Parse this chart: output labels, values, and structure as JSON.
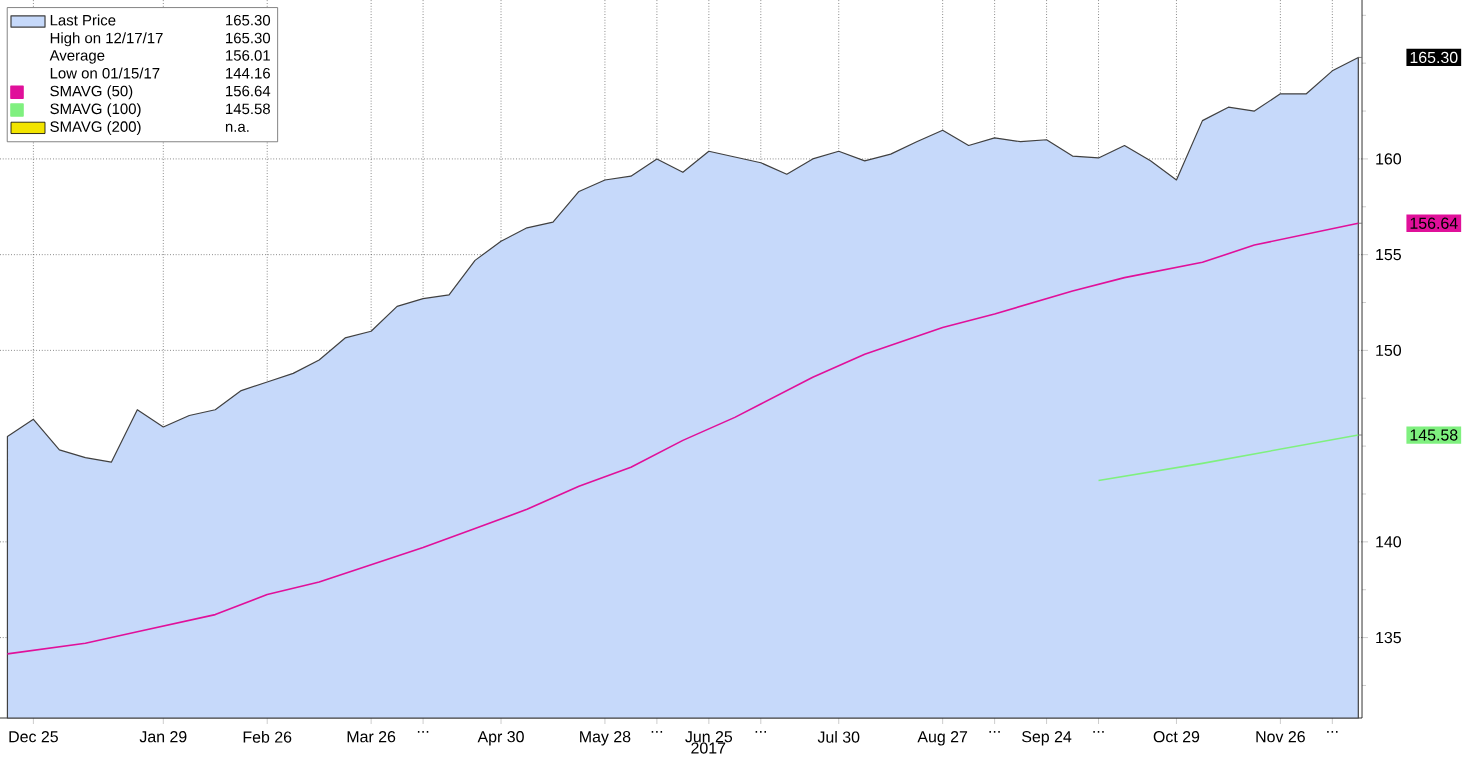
{
  "chart_data": {
    "type": "area",
    "xlabel": "2017",
    "xlim": [
      "2016-12-16",
      "2017-12-18"
    ],
    "xticks": [
      {
        "value": "2016-12-25",
        "label": "Dec 25"
      },
      {
        "value": "2017-01-29",
        "label": "Jan 29"
      },
      {
        "value": "2017-02-26",
        "label": "Feb 26"
      },
      {
        "value": "2017-03-26",
        "label": "Mar 26"
      },
      {
        "value": "2017-04-09",
        "label": "..."
      },
      {
        "value": "2017-04-30",
        "label": "Apr 30"
      },
      {
        "value": "2017-05-28",
        "label": "May 28"
      },
      {
        "value": "2017-06-11",
        "label": "..."
      },
      {
        "value": "2017-06-25",
        "label": "Jun 25"
      },
      {
        "value": "2017-07-09",
        "label": "..."
      },
      {
        "value": "2017-07-30",
        "label": "Jul 30"
      },
      {
        "value": "2017-08-27",
        "label": "Aug 27"
      },
      {
        "value": "2017-09-10",
        "label": "..."
      },
      {
        "value": "2017-09-24",
        "label": "Sep 24"
      },
      {
        "value": "2017-10-08",
        "label": "..."
      },
      {
        "value": "2017-10-29",
        "label": "Oct 29"
      },
      {
        "value": "2017-11-26",
        "label": "Nov 26"
      },
      {
        "value": "2017-12-10",
        "label": "..."
      }
    ],
    "ylim": [
      130.8,
      168.3
    ],
    "yticks": [
      {
        "value": 132.5,
        "label": null
      },
      135,
      {
        "value": 137.5,
        "label": null
      },
      140,
      {
        "value": 142.5,
        "label": null
      },
      {
        "value": 145,
        "label": null
      },
      {
        "value": 147.5,
        "label": null
      },
      150,
      {
        "value": 152.5,
        "label": null
      },
      155,
      {
        "value": 157.5,
        "label": null
      },
      160,
      {
        "value": 162.5,
        "label": null
      },
      {
        "value": 165,
        "label": null
      },
      {
        "value": 167.5,
        "label": null
      }
    ],
    "grid": true,
    "legend": "top left",
    "series": [
      {
        "name": "Last Price",
        "color": "#c6d9fa",
        "x": [
          "2016-12-18",
          "2016-12-25",
          "2017-01-01",
          "2017-01-08",
          "2017-01-15",
          "2017-01-22",
          "2017-01-29",
          "2017-02-05",
          "2017-02-12",
          "2017-02-19",
          "2017-02-26",
          "2017-03-05",
          "2017-03-12",
          "2017-03-19",
          "2017-03-26",
          "2017-04-02",
          "2017-04-09",
          "2017-04-16",
          "2017-04-23",
          "2017-04-30",
          "2017-05-07",
          "2017-05-14",
          "2017-05-21",
          "2017-05-28",
          "2017-06-04",
          "2017-06-11",
          "2017-06-18",
          "2017-06-25",
          "2017-07-02",
          "2017-07-09",
          "2017-07-16",
          "2017-07-23",
          "2017-07-30",
          "2017-08-06",
          "2017-08-13",
          "2017-08-20",
          "2017-08-27",
          "2017-09-03",
          "2017-09-10",
          "2017-09-17",
          "2017-09-24",
          "2017-10-01",
          "2017-10-08",
          "2017-10-15",
          "2017-10-22",
          "2017-10-29",
          "2017-11-05",
          "2017-11-12",
          "2017-11-19",
          "2017-11-26",
          "2017-12-03",
          "2017-12-10",
          "2017-12-17"
        ],
        "values": [
          145.5,
          146.4,
          144.8,
          144.4,
          144.16,
          146.9,
          146.0,
          146.6,
          146.9,
          147.9,
          148.35,
          148.8,
          149.5,
          150.65,
          151.0,
          152.3,
          152.7,
          152.9,
          154.7,
          155.7,
          156.4,
          156.7,
          158.3,
          158.9,
          159.1,
          160.0,
          159.3,
          160.4,
          160.1,
          159.8,
          159.2,
          160.0,
          160.4,
          159.9,
          160.25,
          160.9,
          161.5,
          160.7,
          161.1,
          160.9,
          161.0,
          160.15,
          160.05,
          160.7,
          159.9,
          158.9,
          162.0,
          162.7,
          162.5,
          163.4,
          163.4,
          164.6,
          165.3
        ]
      },
      {
        "name": "SMAVG (50)",
        "color": "#e0109a",
        "type": "line",
        "x": [
          "2016-12-18",
          "2017-01-08",
          "2017-01-22",
          "2017-02-12",
          "2017-02-26",
          "2017-03-12",
          "2017-03-26",
          "2017-04-09",
          "2017-04-23",
          "2017-05-07",
          "2017-05-21",
          "2017-06-04",
          "2017-06-18",
          "2017-07-02",
          "2017-07-09",
          "2017-07-23",
          "2017-08-06",
          "2017-08-27",
          "2017-09-10",
          "2017-10-01",
          "2017-10-15",
          "2017-11-05",
          "2017-11-19",
          "2017-12-17"
        ],
        "values": [
          134.15,
          134.7,
          135.3,
          136.2,
          137.25,
          137.9,
          138.8,
          139.7,
          140.7,
          141.7,
          142.9,
          143.9,
          145.3,
          146.5,
          147.2,
          148.6,
          149.8,
          151.2,
          151.9,
          153.1,
          153.8,
          154.6,
          155.5,
          156.64
        ]
      },
      {
        "name": "SMAVG (100)",
        "color": "#7ff07f",
        "type": "line",
        "x": [
          "2017-10-08",
          "2017-11-05",
          "2017-12-17"
        ],
        "values": [
          143.2,
          144.1,
          145.58
        ]
      },
      {
        "name": "SMAVG (200)",
        "color": "#f2e400",
        "type": "line",
        "values": [
          null
        ]
      }
    ],
    "annotations": [
      "165.30",
      "High on 12/17/17",
      "165.30",
      "Average",
      "156.01",
      "Low on 01/15/17",
      "144.16",
      "156.64",
      "145.58",
      "n.a.",
      "165.30",
      "156.64",
      "145.58"
    ]
  }
}
